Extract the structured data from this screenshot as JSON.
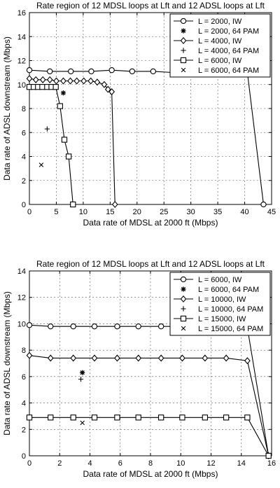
{
  "chart_data": [
    {
      "type": "line",
      "title": "Rate region of 12 MDSL loops at Lft and 12 ADSL loops at Lft",
      "xlabel": "Data rate of MDSL at 2000 ft (Mbps)",
      "ylabel": "Data rate of ADSL downstream (Mbps)",
      "xlim": [
        0,
        45
      ],
      "ylim": [
        0,
        16
      ],
      "xticks": [
        0,
        5,
        10,
        15,
        20,
        25,
        30,
        35,
        40,
        45
      ],
      "yticks": [
        0,
        2,
        4,
        6,
        8,
        10,
        12,
        14,
        16
      ],
      "grid": true,
      "legend_position": "top-right",
      "series": [
        {
          "name": "L = 2000, IW",
          "marker": "circle",
          "connected": true,
          "x": [
            0,
            3.8,
            7.7,
            11.5,
            15.3,
            19.1,
            23,
            26.8,
            30.6,
            34.5,
            38.3,
            40.5,
            43.5
          ],
          "y": [
            11.2,
            11.1,
            11.1,
            11.1,
            11.2,
            11.1,
            11.1,
            11.0,
            11.0,
            11.0,
            11.0,
            11.0,
            0
          ]
        },
        {
          "name": "L = 2000, 64 PAM",
          "marker": "asterisk",
          "connected": false,
          "x": [
            6.3
          ],
          "y": [
            9.3
          ]
        },
        {
          "name": "L = 4000, IW",
          "marker": "diamond",
          "connected": true,
          "x": [
            0,
            1.2,
            2.5,
            3.8,
            5,
            6.3,
            7.6,
            8.8,
            10.1,
            11.4,
            12.6,
            13.9,
            14.6,
            15.3,
            15.9
          ],
          "y": [
            10.5,
            10.4,
            10.4,
            10.4,
            10.3,
            10.3,
            10.3,
            10.3,
            10.3,
            10.3,
            10.2,
            10.0,
            9.6,
            9.4,
            0
          ]
        },
        {
          "name": "L = 4000, 64 PAM",
          "marker": "plus",
          "connected": false,
          "x": [
            3.3
          ],
          "y": [
            6.3
          ]
        },
        {
          "name": "L = 6000, IW",
          "marker": "square",
          "connected": true,
          "x": [
            0,
            0.8,
            1.6,
            2.4,
            3.3,
            4.1,
            4.9,
            5.7,
            6.5,
            7.3,
            8.1
          ],
          "y": [
            9.8,
            9.8,
            9.8,
            9.8,
            9.8,
            9.8,
            9.8,
            8.2,
            5.4,
            4.0,
            0
          ]
        },
        {
          "name": "L = 6000, 64 PAM",
          "marker": "x",
          "connected": false,
          "x": [
            2.2
          ],
          "y": [
            3.3
          ]
        }
      ]
    },
    {
      "type": "line",
      "title": "Rate region of 12 MDSL loops at Lft and 12 ADSL loops at Lft",
      "xlabel": "Data rate of MDSL at 2000 ft (Mbps)",
      "ylabel": "Data rate of ADSL downstream (Mbps)",
      "xlim": [
        0,
        16
      ],
      "ylim": [
        0,
        14
      ],
      "xticks": [
        0,
        2,
        4,
        6,
        8,
        10,
        12,
        14,
        16
      ],
      "yticks": [
        0,
        2,
        4,
        6,
        8,
        10,
        12,
        14
      ],
      "grid": true,
      "legend_position": "top-right",
      "series": [
        {
          "name": "L = 6000, IW",
          "marker": "circle",
          "connected": true,
          "x": [
            0,
            1.4,
            2.9,
            4.3,
            5.8,
            7.2,
            8.7,
            10.1,
            11.6,
            13.0,
            14.4,
            15.8
          ],
          "y": [
            9.9,
            9.8,
            9.8,
            9.8,
            9.8,
            9.8,
            9.8,
            9.8,
            9.8,
            9.8,
            9.7,
            0
          ]
        },
        {
          "name": "L = 6000, 64 PAM",
          "marker": "asterisk",
          "connected": false,
          "x": [
            3.5
          ],
          "y": [
            6.3
          ]
        },
        {
          "name": "L = 10000, IW",
          "marker": "diamond",
          "connected": true,
          "x": [
            0,
            1.4,
            2.9,
            4.3,
            5.8,
            7.2,
            8.7,
            10.1,
            11.6,
            13.0,
            14.4,
            15.8
          ],
          "y": [
            7.6,
            7.4,
            7.4,
            7.4,
            7.4,
            7.4,
            7.4,
            7.4,
            7.4,
            7.4,
            7.2,
            0
          ]
        },
        {
          "name": "L = 10000, 64 PAM",
          "marker": "plus",
          "connected": false,
          "x": [
            3.4
          ],
          "y": [
            5.8
          ]
        },
        {
          "name": "L = 15000, IW",
          "marker": "square",
          "connected": true,
          "x": [
            0,
            1.4,
            2.9,
            4.3,
            5.8,
            7.2,
            8.7,
            10.1,
            11.6,
            13.0,
            14.4,
            15.8
          ],
          "y": [
            2.9,
            2.9,
            2.9,
            2.9,
            2.9,
            2.9,
            2.9,
            2.9,
            2.9,
            2.9,
            2.9,
            0
          ]
        },
        {
          "name": "L = 15000, 64 PAM",
          "marker": "x",
          "connected": false,
          "x": [
            3.5
          ],
          "y": [
            2.5
          ]
        }
      ]
    }
  ]
}
